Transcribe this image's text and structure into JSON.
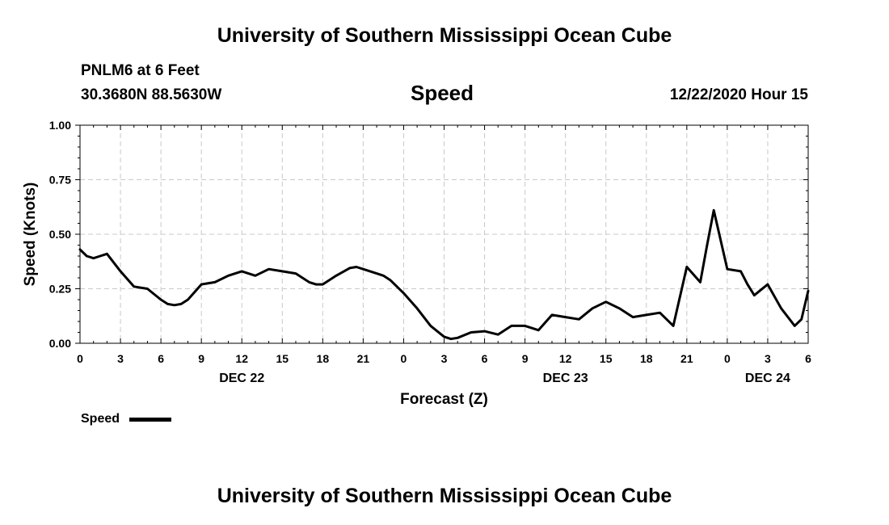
{
  "header": {
    "title": "University of Southern Mississippi Ocean Cube",
    "station": "PNLM6 at 6 Feet",
    "coords": "30.3680N 88.5630W",
    "variable": "Speed",
    "timestamp": "12/22/2020 Hour 15"
  },
  "footer": {
    "title": "University of Southern Mississippi Ocean Cube"
  },
  "legend": {
    "label": "Speed"
  },
  "chart_data": {
    "type": "line",
    "title": "Speed",
    "xlabel": "Forecast (Z)",
    "ylabel": "Speed (Knots)",
    "xlim": [
      0,
      54
    ],
    "ylim": [
      0,
      1.0
    ],
    "x_ticks": [
      {
        "x": 0,
        "label": "0"
      },
      {
        "x": 3,
        "label": "3"
      },
      {
        "x": 6,
        "label": "6"
      },
      {
        "x": 9,
        "label": "9"
      },
      {
        "x": 12,
        "label": "12"
      },
      {
        "x": 15,
        "label": "15"
      },
      {
        "x": 18,
        "label": "18"
      },
      {
        "x": 21,
        "label": "21"
      },
      {
        "x": 24,
        "label": "0"
      },
      {
        "x": 27,
        "label": "3"
      },
      {
        "x": 30,
        "label": "6"
      },
      {
        "x": 33,
        "label": "9"
      },
      {
        "x": 36,
        "label": "12"
      },
      {
        "x": 39,
        "label": "15"
      },
      {
        "x": 42,
        "label": "18"
      },
      {
        "x": 45,
        "label": "21"
      },
      {
        "x": 48,
        "label": "0"
      },
      {
        "x": 51,
        "label": "3"
      },
      {
        "x": 54,
        "label": "6"
      }
    ],
    "y_ticks": [
      {
        "y": 0,
        "label": "0.00"
      },
      {
        "y": 0.25,
        "label": "0.25"
      },
      {
        "y": 0.5,
        "label": "0.50"
      },
      {
        "y": 0.75,
        "label": "0.75"
      },
      {
        "y": 1.0,
        "label": "1.00"
      }
    ],
    "date_labels": [
      {
        "x": 12,
        "label": "DEC 22"
      },
      {
        "x": 36,
        "label": "DEC 23"
      },
      {
        "x": 51,
        "label": "DEC 24"
      }
    ],
    "grid": true,
    "legend_position": "bottom-left",
    "series": [
      {
        "name": "Speed",
        "color": "#000000",
        "x": [
          0,
          0.5,
          1,
          1.5,
          2,
          3,
          4,
          5,
          6,
          6.5,
          7,
          7.5,
          8,
          9,
          10,
          11,
          12,
          13,
          14,
          15,
          16,
          17,
          17.5,
          18,
          19,
          20,
          20.5,
          21,
          22,
          22.5,
          23,
          24,
          25,
          26,
          27,
          27.5,
          28,
          29,
          30,
          31,
          32,
          33,
          34,
          35,
          36,
          37,
          38,
          39,
          40,
          41,
          42,
          43,
          44,
          45,
          46,
          46.5,
          47,
          48,
          49,
          49.5,
          50,
          51,
          52,
          53,
          53.5,
          54
        ],
        "values": [
          0.43,
          0.4,
          0.39,
          0.4,
          0.41,
          0.33,
          0.26,
          0.25,
          0.2,
          0.18,
          0.175,
          0.18,
          0.2,
          0.27,
          0.28,
          0.31,
          0.33,
          0.31,
          0.34,
          0.33,
          0.32,
          0.28,
          0.27,
          0.27,
          0.31,
          0.345,
          0.35,
          0.34,
          0.32,
          0.31,
          0.29,
          0.23,
          0.16,
          0.08,
          0.03,
          0.02,
          0.025,
          0.05,
          0.055,
          0.04,
          0.08,
          0.08,
          0.06,
          0.13,
          0.12,
          0.11,
          0.16,
          0.19,
          0.16,
          0.12,
          0.13,
          0.14,
          0.08,
          0.35,
          0.28,
          0.45,
          0.61,
          0.34,
          0.33,
          0.27,
          0.22,
          0.27,
          0.16,
          0.08,
          0.11,
          0.24
        ]
      }
    ]
  }
}
